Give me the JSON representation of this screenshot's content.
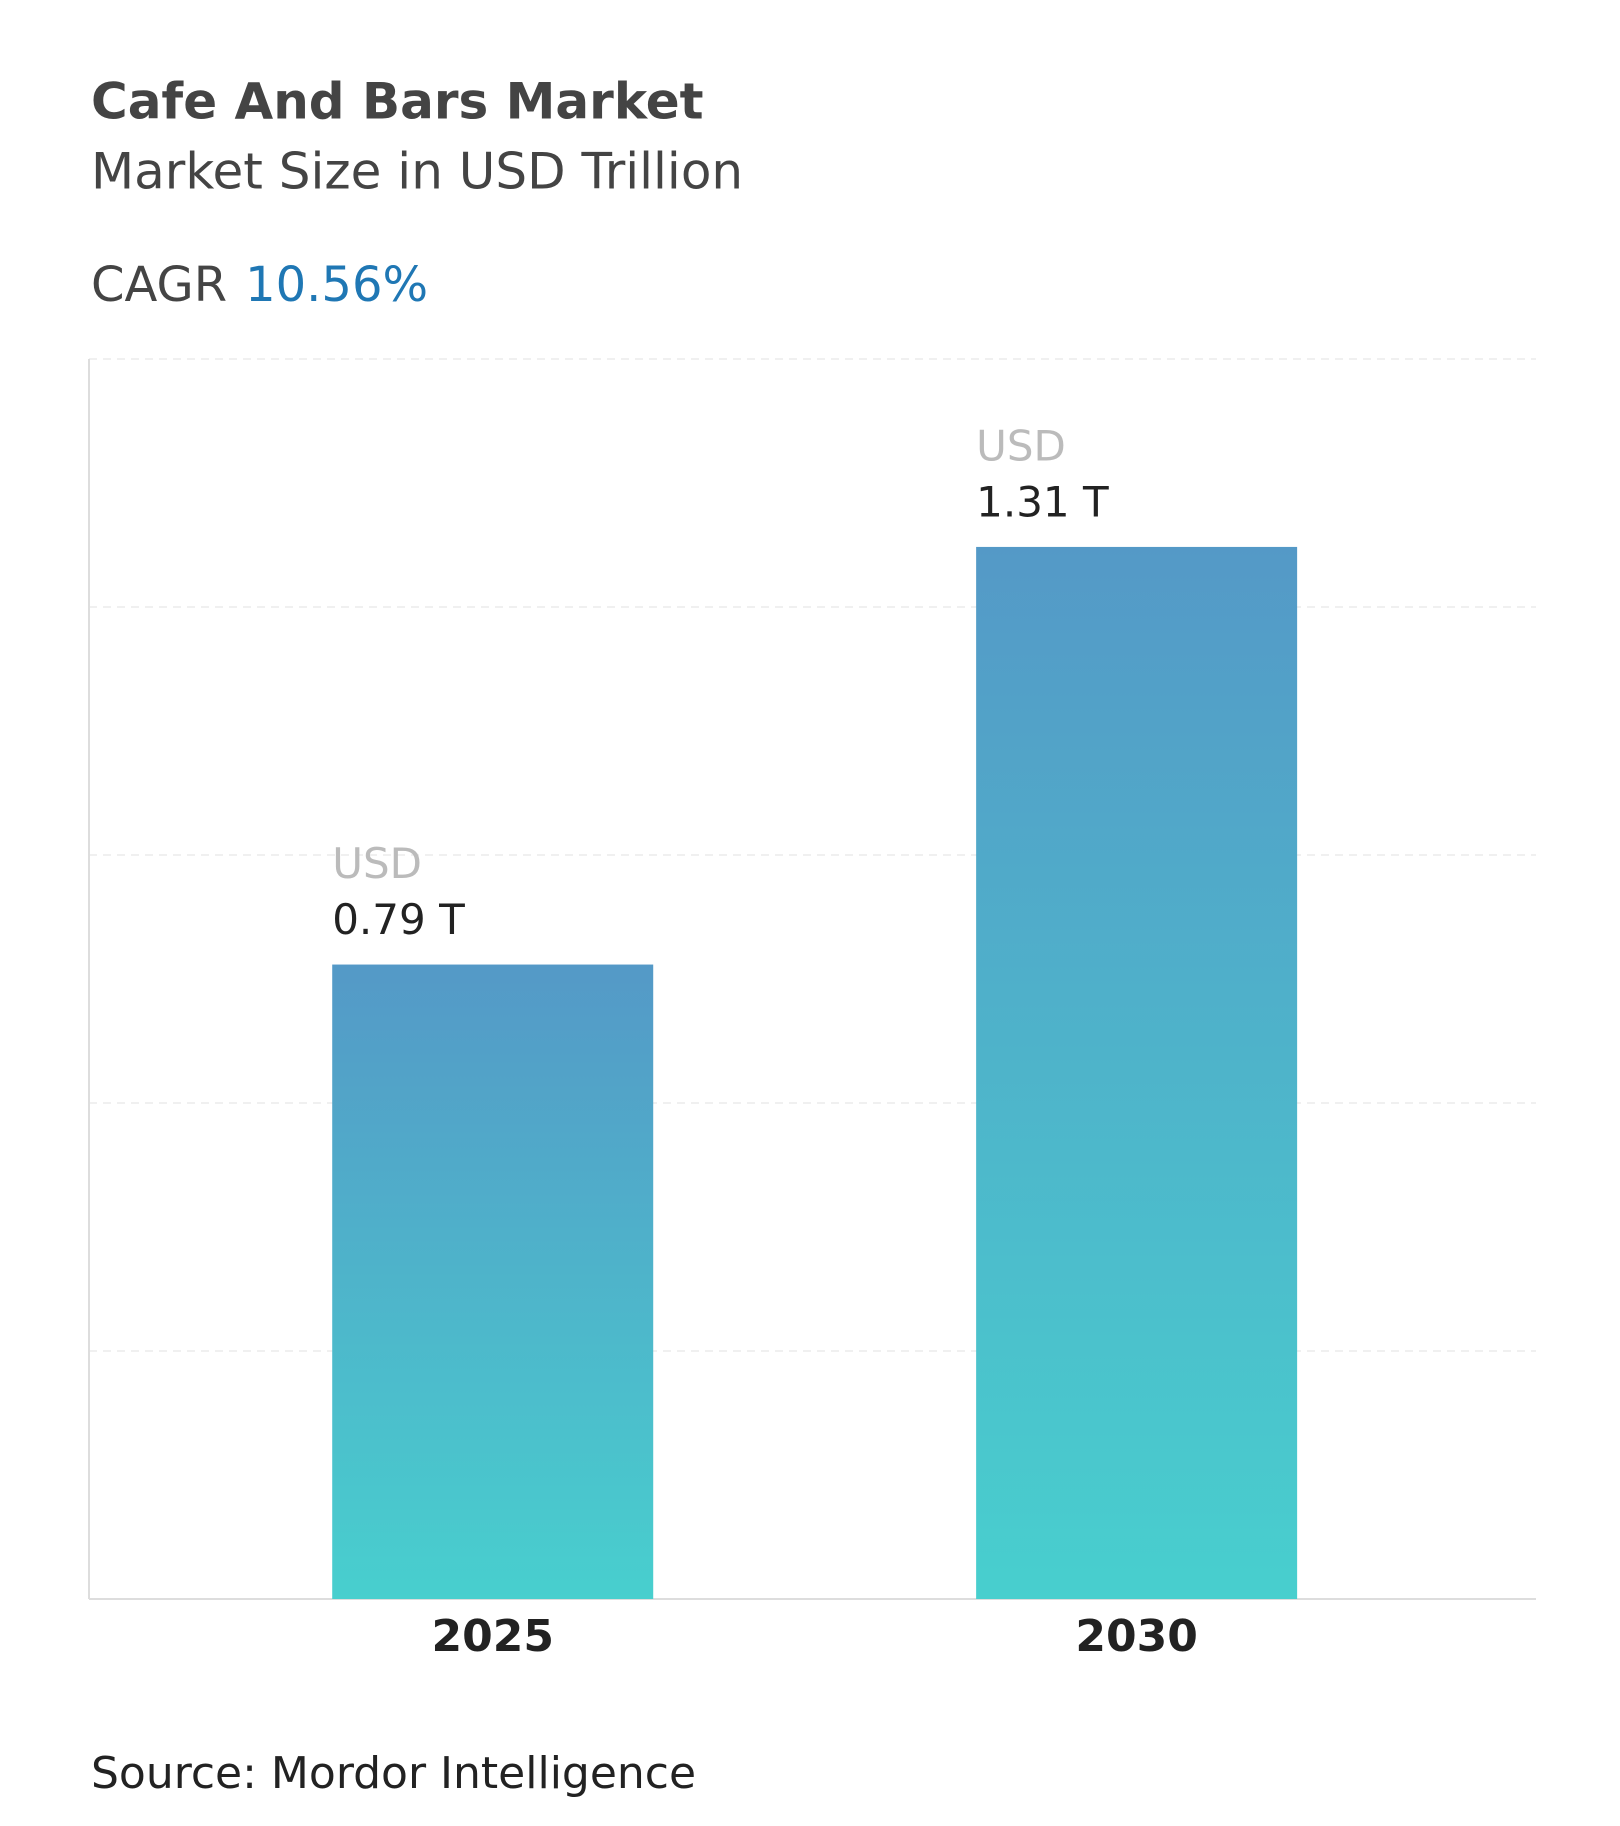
{
  "title": "Cafe And Bars Market",
  "subtitle": "Market Size in USD Trillion",
  "cagr_label": "CAGR",
  "cagr_value": "10.56%",
  "source": "Source: Mordor Intelligence",
  "chart_data": {
    "type": "bar",
    "categories": [
      "2025",
      "2030"
    ],
    "values": [
      0.79,
      1.31
    ],
    "value_labels": [
      "0.79 T",
      "1.31 T"
    ],
    "value_unit": "USD",
    "ylim": [
      0,
      1.544
    ],
    "color": [
      "#5499c7",
      "#48cfce"
    ],
    "grid": true
  }
}
